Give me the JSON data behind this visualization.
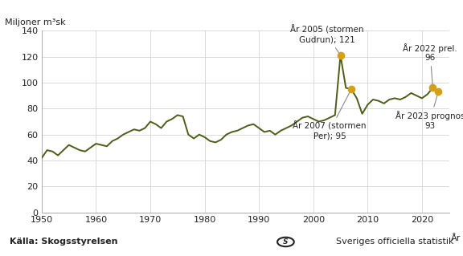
{
  "years": [
    1950,
    1951,
    1952,
    1953,
    1954,
    1955,
    1956,
    1957,
    1958,
    1959,
    1960,
    1961,
    1962,
    1963,
    1964,
    1965,
    1966,
    1967,
    1968,
    1969,
    1970,
    1971,
    1972,
    1973,
    1974,
    1975,
    1976,
    1977,
    1978,
    1979,
    1980,
    1981,
    1982,
    1983,
    1984,
    1985,
    1986,
    1987,
    1988,
    1989,
    1990,
    1991,
    1992,
    1993,
    1994,
    1995,
    1996,
    1997,
    1998,
    1999,
    2000,
    2001,
    2002,
    2003,
    2004,
    2005,
    2006,
    2007,
    2008,
    2009,
    2010,
    2011,
    2012,
    2013,
    2014,
    2015,
    2016,
    2017,
    2018,
    2019,
    2020,
    2021,
    2022,
    2023
  ],
  "values": [
    42,
    48,
    47,
    44,
    48,
    52,
    50,
    48,
    47,
    50,
    53,
    52,
    51,
    55,
    57,
    60,
    62,
    64,
    63,
    65,
    70,
    68,
    65,
    70,
    72,
    75,
    74,
    60,
    57,
    60,
    58,
    55,
    54,
    56,
    60,
    62,
    63,
    65,
    67,
    68,
    65,
    62,
    63,
    60,
    63,
    65,
    67,
    70,
    73,
    74,
    72,
    70,
    71,
    73,
    75,
    121,
    96,
    95,
    88,
    76,
    83,
    87,
    86,
    84,
    87,
    88,
    87,
    89,
    92,
    90,
    88,
    91,
    96,
    93
  ],
  "highlight_years": [
    2005,
    2007,
    2022,
    2023
  ],
  "highlight_values": [
    121,
    95,
    96,
    93
  ],
  "highlight_color": "#d4a017",
  "line_color": "#4a5e1a",
  "line_width": 1.4,
  "top_label": "Miljoner m³sk",
  "xlabel": "År",
  "ylim": [
    0,
    140
  ],
  "xlim": [
    1950,
    2025
  ],
  "yticks": [
    0,
    20,
    40,
    60,
    80,
    100,
    120,
    140
  ],
  "xticks": [
    1950,
    1960,
    1970,
    1980,
    1990,
    2000,
    2010,
    2020
  ],
  "annotation_2005_text": "År 2005 (stormen\nGudrun); 121",
  "annotation_2007_text": "År 2007 (stormen\nPer); 95",
  "annotation_2022_text": "År 2022 prel.\n96",
  "annotation_2023_text": "År 2023 prognos\n93",
  "source_text": "Källa: Skogsstyrelsen",
  "sos_text": "Sveriges officiella statistik",
  "background_color": "#ffffff",
  "grid_color": "#cccccc",
  "font_color": "#222222",
  "tick_fontsize": 8,
  "annotation_fontsize": 7.5,
  "label_fontsize": 8
}
